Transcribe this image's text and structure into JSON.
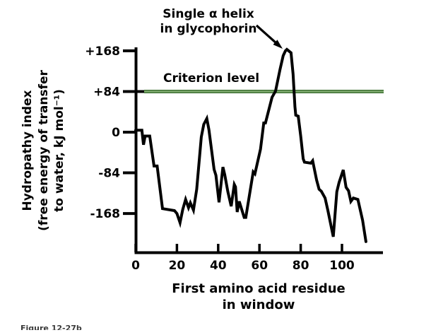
{
  "figure": {
    "annotation": {
      "line1": "Single α helix",
      "line2": "in glycophorin"
    },
    "criterion": {
      "label": "Criterion level",
      "value": 84
    },
    "y_axis": {
      "title_lines": [
        "Hydropathy index",
        "(free energy of transfer",
        "to water, kJ mol⁻¹)"
      ],
      "tick_labels": [
        "+168",
        "+84",
        "0",
        "-84",
        "-168"
      ],
      "tick_values": [
        168,
        84,
        0,
        -84,
        -168
      ]
    },
    "x_axis": {
      "title_lines": [
        "First amino acid residue",
        "in window"
      ],
      "tick_labels": [
        "0",
        "20",
        "40",
        "60",
        "80",
        "100"
      ],
      "tick_values": [
        0,
        20,
        40,
        60,
        80,
        100
      ]
    },
    "caption": "Figure 12-27b",
    "colors": {
      "curve": "#000000",
      "axis": "#000000",
      "text": "#000000",
      "criterion_dark": "#3f7034",
      "criterion_light": "#85b173"
    }
  },
  "chart_data": {
    "type": "line",
    "title": "",
    "annotation": "Single α helix in glycophorin",
    "xlabel": "First amino acid residue in window",
    "ylabel": "Hydropathy index (free energy of transfer to water, kJ mol⁻¹)",
    "xlim": [
      0,
      120
    ],
    "ylim": [
      -250,
      190
    ],
    "x_ticks": [
      0,
      20,
      40,
      60,
      80,
      100
    ],
    "y_ticks": [
      168,
      84,
      0,
      -84,
      -168
    ],
    "criterion_level": 84,
    "grid": false,
    "legend": "none",
    "series": [
      {
        "name": "Hydropathy index",
        "x": [
          0,
          3,
          3.8,
          4.6,
          6.8,
          8.9,
          10.4,
          13,
          18.8,
          20,
          21.5,
          22.8,
          24.2,
          25.6,
          26.5,
          28,
          29.6,
          31.8,
          33,
          34.5,
          35.5,
          38,
          38.9,
          40.4,
          42.3,
          43.2,
          44.7,
          46.3,
          47.8,
          48.4,
          49.2,
          50.2,
          52.6,
          53.4,
          57,
          57.8,
          60.5,
          62.1,
          62.9,
          66.1,
          67.8,
          70,
          71.5,
          72.6,
          73.3,
          75.3,
          76.3,
          77.2,
          77.6,
          78.8,
          80,
          81.2,
          81.8,
          84.9,
          85.8,
          87.7,
          88.9,
          90,
          91.8,
          93.2,
          95.8,
          97.5,
          98.6,
          100.6,
          102,
          103.2,
          104.3,
          105.5,
          107.7,
          110,
          111.6
        ],
        "y": [
          4,
          4,
          -26,
          -8,
          -8,
          -70,
          -70,
          -158,
          -162,
          -168,
          -187,
          -160,
          -139,
          -156,
          -146,
          -161,
          -118,
          -10,
          16,
          28,
          5,
          -77,
          -89,
          -145,
          -72,
          -88,
          -123,
          -153,
          -108,
          -113,
          -165,
          -143,
          -176,
          -176,
          -82,
          -86,
          -35,
          19,
          19,
          72,
          85,
          130,
          158,
          168,
          171,
          164,
          120,
          53,
          35,
          33,
          -8,
          -55,
          -62,
          -64,
          -59,
          -99,
          -118,
          -122,
          -136,
          -162,
          -216,
          -123,
          -104,
          -78,
          -114,
          -121,
          -143,
          -136,
          -139,
          -182,
          -226
        ]
      }
    ]
  }
}
